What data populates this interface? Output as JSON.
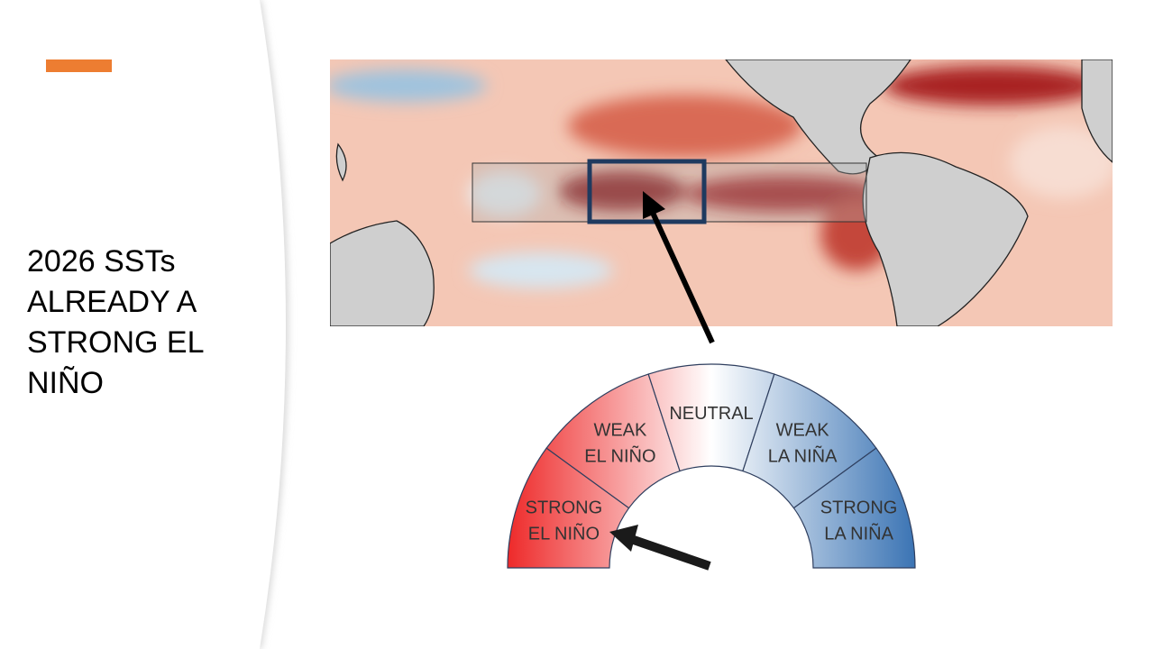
{
  "slide": {
    "title": "2026 SSTs ALREADY A STRONG EL NIÑO",
    "gauge": {
      "segments": [
        {
          "lines": [
            "STRONG",
            "EL NIÑO"
          ]
        },
        {
          "lines": [
            "WEAK",
            "EL NIÑO"
          ]
        },
        {
          "lines": [
            "NEUTRAL"
          ]
        },
        {
          "lines": [
            "WEAK",
            "LA NIÑA"
          ]
        },
        {
          "lines": [
            "STRONG",
            "LA NIÑA"
          ]
        }
      ]
    }
  }
}
